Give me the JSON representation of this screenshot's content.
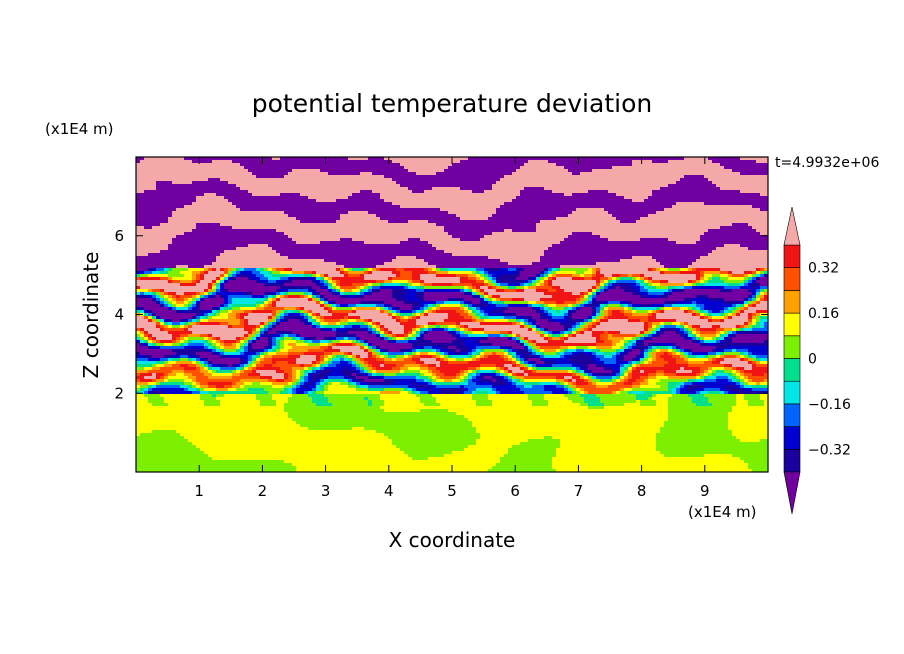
{
  "chart_data": {
    "type": "heatmap",
    "title": "potential temperature deviation",
    "xlabel": "X coordinate",
    "ylabel": "Z coordinate",
    "x_unit": "(x1E4 m)",
    "y_unit": "(x1E4 m)",
    "xlim": [
      0,
      10
    ],
    "ylim": [
      0,
      8
    ],
    "x_ticks": [
      "1",
      "2",
      "3",
      "4",
      "5",
      "6",
      "7",
      "8",
      "9"
    ],
    "y_ticks": [
      "2",
      "4",
      "6"
    ],
    "time_label": "t=4.9932e+06",
    "colorbar": {
      "labels": [
        "0.32",
        "0.16",
        "0",
        "−0.16",
        "−0.32"
      ],
      "label_values": [
        0.32,
        0.16,
        0,
        -0.16,
        -0.32
      ],
      "levels": [
        -0.4,
        -0.32,
        -0.24,
        -0.16,
        -0.08,
        0,
        0.08,
        0.16,
        0.24,
        0.32,
        0.4
      ],
      "colors": [
        "#7000a0",
        "#1a009c",
        "#0000d0",
        "#0064ff",
        "#00e6e6",
        "#00e08c",
        "#7cf000",
        "#ffff00",
        "#ffa000",
        "#ff5000",
        "#f01414",
        "#f4a8a8"
      ],
      "extend": "both"
    }
  }
}
